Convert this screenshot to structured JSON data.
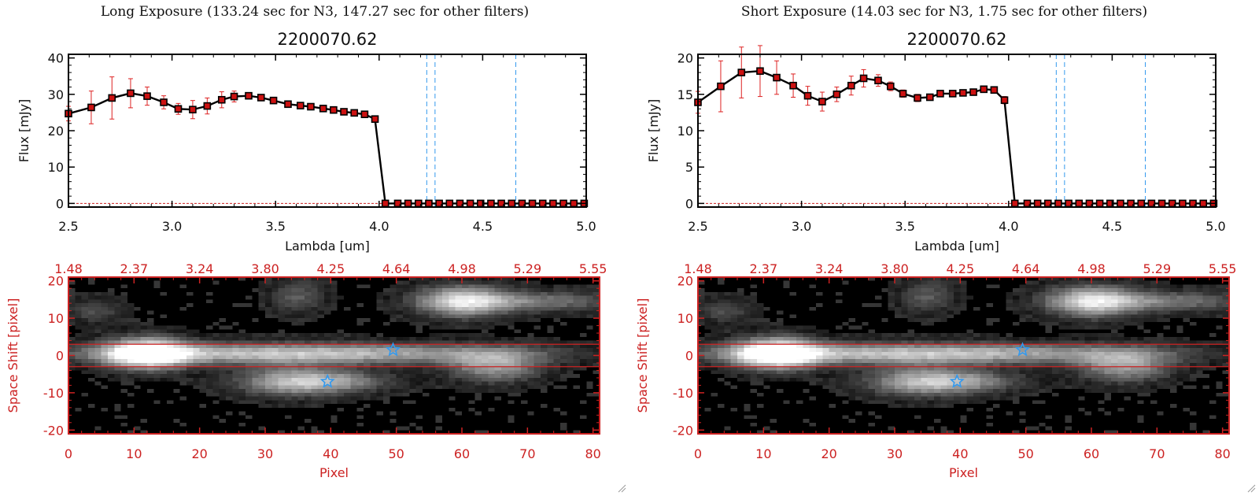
{
  "panels": [
    {
      "header": "Long Exposure (133.24 sec for N3, 147.27 sec for other filters)",
      "spectrum": {
        "title": "2200070.62",
        "xlabel": "Lambda [um]",
        "ylabel": "Flux [mJy]",
        "xticks": [
          "2.5",
          "3.0",
          "3.5",
          "4.0",
          "4.5",
          "5.0"
        ],
        "yticks": [
          "0",
          "10",
          "20",
          "30",
          "40"
        ]
      },
      "image": {
        "xlabel": "Pixel",
        "ylabel": "Space Shift [pixel]",
        "xticks": [
          "0",
          "10",
          "20",
          "30",
          "40",
          "50",
          "60",
          "70",
          "80"
        ],
        "yticks": [
          "-20",
          "-10",
          "0",
          "10",
          "20"
        ],
        "top_ticks": [
          "1.48",
          "2.37",
          "3.24",
          "3.80",
          "4.25",
          "4.64",
          "4.98",
          "5.29",
          "5.55"
        ]
      }
    },
    {
      "header": "Short Exposure (14.03 sec for N3, 1.75 sec for other filters)",
      "spectrum": {
        "title": "2200070.62",
        "xlabel": "Lambda [um]",
        "ylabel": "Flux [mJy]",
        "xticks": [
          "2.5",
          "3.0",
          "3.5",
          "4.0",
          "4.5",
          "5.0"
        ],
        "yticks": [
          "0",
          "5",
          "10",
          "15",
          "20"
        ]
      },
      "image": {
        "xlabel": "Pixel",
        "ylabel": "Space Shift [pixel]",
        "xticks": [
          "0",
          "10",
          "20",
          "30",
          "40",
          "50",
          "60",
          "70",
          "80"
        ],
        "yticks": [
          "-20",
          "-10",
          "0",
          "10",
          "20"
        ],
        "top_ticks": [
          "1.48",
          "2.37",
          "3.24",
          "3.80",
          "4.25",
          "4.64",
          "4.98",
          "5.29",
          "5.55"
        ]
      }
    }
  ],
  "colors": {
    "spectrum_line": "#000000",
    "marker_fill": "#cc1111",
    "error_bar": "#dd2222",
    "dashed_lines": "#3399ee",
    "zero_line": "#cc2222",
    "image_frame": "#cc2222",
    "image_text": "#cc2222",
    "star_markers": "#3399ee"
  },
  "chart_data": [
    {
      "type": "line",
      "panel": "long",
      "title": "2200070.62",
      "xlabel": "Lambda [um]",
      "ylabel": "Flux [mJy]",
      "xlim": [
        2.5,
        5.0
      ],
      "ylim": [
        -1,
        41
      ],
      "grid": false,
      "vlines": [
        4.23,
        4.27,
        4.66
      ],
      "x": [
        2.5,
        2.61,
        2.71,
        2.8,
        2.88,
        2.96,
        3.03,
        3.1,
        3.17,
        3.24,
        3.3,
        3.37,
        3.43,
        3.49,
        3.56,
        3.62,
        3.67,
        3.73,
        3.78,
        3.83,
        3.88,
        3.93,
        3.98,
        4.03,
        4.09,
        4.14,
        4.19,
        4.24,
        4.29,
        4.34,
        4.39,
        4.44,
        4.49,
        4.54,
        4.59,
        4.64,
        4.69,
        4.74,
        4.79,
        4.84,
        4.89,
        4.94,
        4.99
      ],
      "y": [
        24.7,
        26.4,
        29.0,
        30.3,
        29.5,
        27.8,
        26.0,
        25.8,
        26.8,
        28.5,
        29.4,
        29.6,
        29.1,
        28.3,
        27.3,
        26.9,
        26.6,
        26.1,
        25.7,
        25.2,
        24.9,
        24.5,
        23.2,
        0.0,
        0.0,
        0.0,
        0.0,
        0.0,
        0.0,
        0.0,
        0.0,
        0.0,
        0.0,
        0.0,
        0.0,
        0.0,
        0.0,
        0.0,
        0.0,
        0.0,
        0.0,
        0.0,
        0.0
      ],
      "yerr": [
        2.0,
        4.5,
        5.8,
        4.0,
        2.5,
        1.8,
        1.5,
        2.5,
        2.2,
        2.2,
        1.5,
        0.8,
        0.7,
        0.6,
        0.5,
        0.5,
        0.5,
        0.5,
        0.5,
        0.5,
        0.5,
        0.5,
        0.6,
        0.0,
        0.0,
        0.0,
        0.0,
        0.0,
        0.0,
        0.0,
        0.0,
        0.0,
        0.0,
        0.0,
        0.0,
        0.0,
        0.0,
        0.0,
        0.0,
        0.0,
        0.0,
        0.0,
        0.0
      ]
    },
    {
      "type": "line",
      "panel": "short",
      "title": "2200070.62",
      "xlabel": "Lambda [um]",
      "ylabel": "Flux [mJy]",
      "xlim": [
        2.5,
        5.0
      ],
      "ylim": [
        -0.5,
        20.5
      ],
      "grid": false,
      "vlines": [
        4.23,
        4.27,
        4.66
      ],
      "x": [
        2.5,
        2.61,
        2.71,
        2.8,
        2.88,
        2.96,
        3.03,
        3.1,
        3.17,
        3.24,
        3.3,
        3.37,
        3.43,
        3.49,
        3.56,
        3.62,
        3.67,
        3.73,
        3.78,
        3.83,
        3.88,
        3.93,
        3.98,
        4.03,
        4.09,
        4.14,
        4.19,
        4.24,
        4.29,
        4.34,
        4.39,
        4.44,
        4.49,
        4.54,
        4.59,
        4.64,
        4.69,
        4.74,
        4.79,
        4.84,
        4.89,
        4.94,
        4.99
      ],
      "y": [
        13.9,
        16.1,
        18.0,
        18.2,
        17.3,
        16.2,
        14.8,
        14.0,
        15.0,
        16.2,
        17.2,
        16.9,
        16.1,
        15.1,
        14.5,
        14.6,
        15.1,
        15.1,
        15.2,
        15.3,
        15.7,
        15.6,
        14.2,
        0.0,
        0.0,
        0.0,
        0.0,
        0.0,
        0.0,
        0.0,
        0.0,
        0.0,
        0.0,
        0.0,
        0.0,
        0.0,
        0.0,
        0.0,
        0.0,
        0.0,
        0.0,
        0.0,
        0.0
      ],
      "yerr": [
        1.5,
        3.5,
        3.5,
        3.5,
        2.3,
        1.6,
        1.3,
        1.3,
        1.0,
        1.3,
        1.2,
        0.8,
        0.6,
        0.5,
        0.5,
        0.4,
        0.4,
        0.4,
        0.4,
        0.4,
        0.4,
        0.4,
        0.5,
        0.0,
        0.0,
        0.0,
        0.0,
        0.0,
        0.0,
        0.0,
        0.0,
        0.0,
        0.0,
        0.0,
        0.0,
        0.0,
        0.0,
        0.0,
        0.0,
        0.0,
        0.0,
        0.0,
        0.0
      ]
    },
    {
      "type": "heatmap",
      "panel": "long",
      "xlabel": "Pixel",
      "ylabel": "Space Shift [pixel]",
      "xlim": [
        0,
        81
      ],
      "ylim": [
        -21,
        21
      ],
      "hlines": [
        3,
        -3
      ],
      "stars": [
        {
          "x": 49.5,
          "y": 1.5
        },
        {
          "x": 39.5,
          "y": -7
        }
      ],
      "blobs": [
        {
          "x": 12,
          "y": 0.5,
          "sx": 4.5,
          "sy": 3.0,
          "amp": 1.0
        },
        {
          "x": 35,
          "y": 0.5,
          "sx": 24,
          "sy": 2.0,
          "amp": 0.75
        },
        {
          "x": 34,
          "y": -7,
          "sx": 6,
          "sy": 2.8,
          "amp": 0.6
        },
        {
          "x": 60,
          "y": 14.5,
          "sx": 5,
          "sy": 3.0,
          "amp": 0.75
        },
        {
          "x": 72,
          "y": 14.5,
          "sx": 9,
          "sy": 2.0,
          "amp": 0.4
        },
        {
          "x": 65,
          "y": -3,
          "sx": 5,
          "sy": 3.0,
          "amp": 0.55
        },
        {
          "x": 42,
          "y": -7,
          "sx": 6,
          "sy": 2.0,
          "amp": 0.35
        },
        {
          "x": 35,
          "y": 16,
          "sx": 3,
          "sy": 3.5,
          "amp": 0.3
        },
        {
          "x": 4,
          "y": 12,
          "sx": 3,
          "sy": 2.5,
          "amp": 0.25
        }
      ]
    },
    {
      "type": "heatmap",
      "panel": "short",
      "xlabel": "Pixel",
      "ylabel": "Space Shift [pixel]",
      "xlim": [
        0,
        81
      ],
      "ylim": [
        -21,
        21
      ],
      "hlines": [
        3,
        -3
      ],
      "stars": [
        {
          "x": 49.5,
          "y": 1.5
        },
        {
          "x": 39.5,
          "y": -7
        }
      ],
      "blobs": [
        {
          "x": 12,
          "y": 0.5,
          "sx": 4.5,
          "sy": 3.0,
          "amp": 1.0
        },
        {
          "x": 35,
          "y": 0.5,
          "sx": 24,
          "sy": 2.0,
          "amp": 0.75
        },
        {
          "x": 34,
          "y": -7,
          "sx": 6,
          "sy": 2.8,
          "amp": 0.6
        },
        {
          "x": 60,
          "y": 14.5,
          "sx": 5,
          "sy": 3.0,
          "amp": 0.75
        },
        {
          "x": 72,
          "y": 14.5,
          "sx": 9,
          "sy": 2.0,
          "amp": 0.4
        },
        {
          "x": 65,
          "y": -3,
          "sx": 5,
          "sy": 3.0,
          "amp": 0.55
        },
        {
          "x": 42,
          "y": -7,
          "sx": 6,
          "sy": 2.0,
          "amp": 0.35
        },
        {
          "x": 35,
          "y": 16,
          "sx": 3,
          "sy": 3.5,
          "amp": 0.3
        },
        {
          "x": 4,
          "y": 12,
          "sx": 3,
          "sy": 2.5,
          "amp": 0.25
        }
      ]
    }
  ]
}
